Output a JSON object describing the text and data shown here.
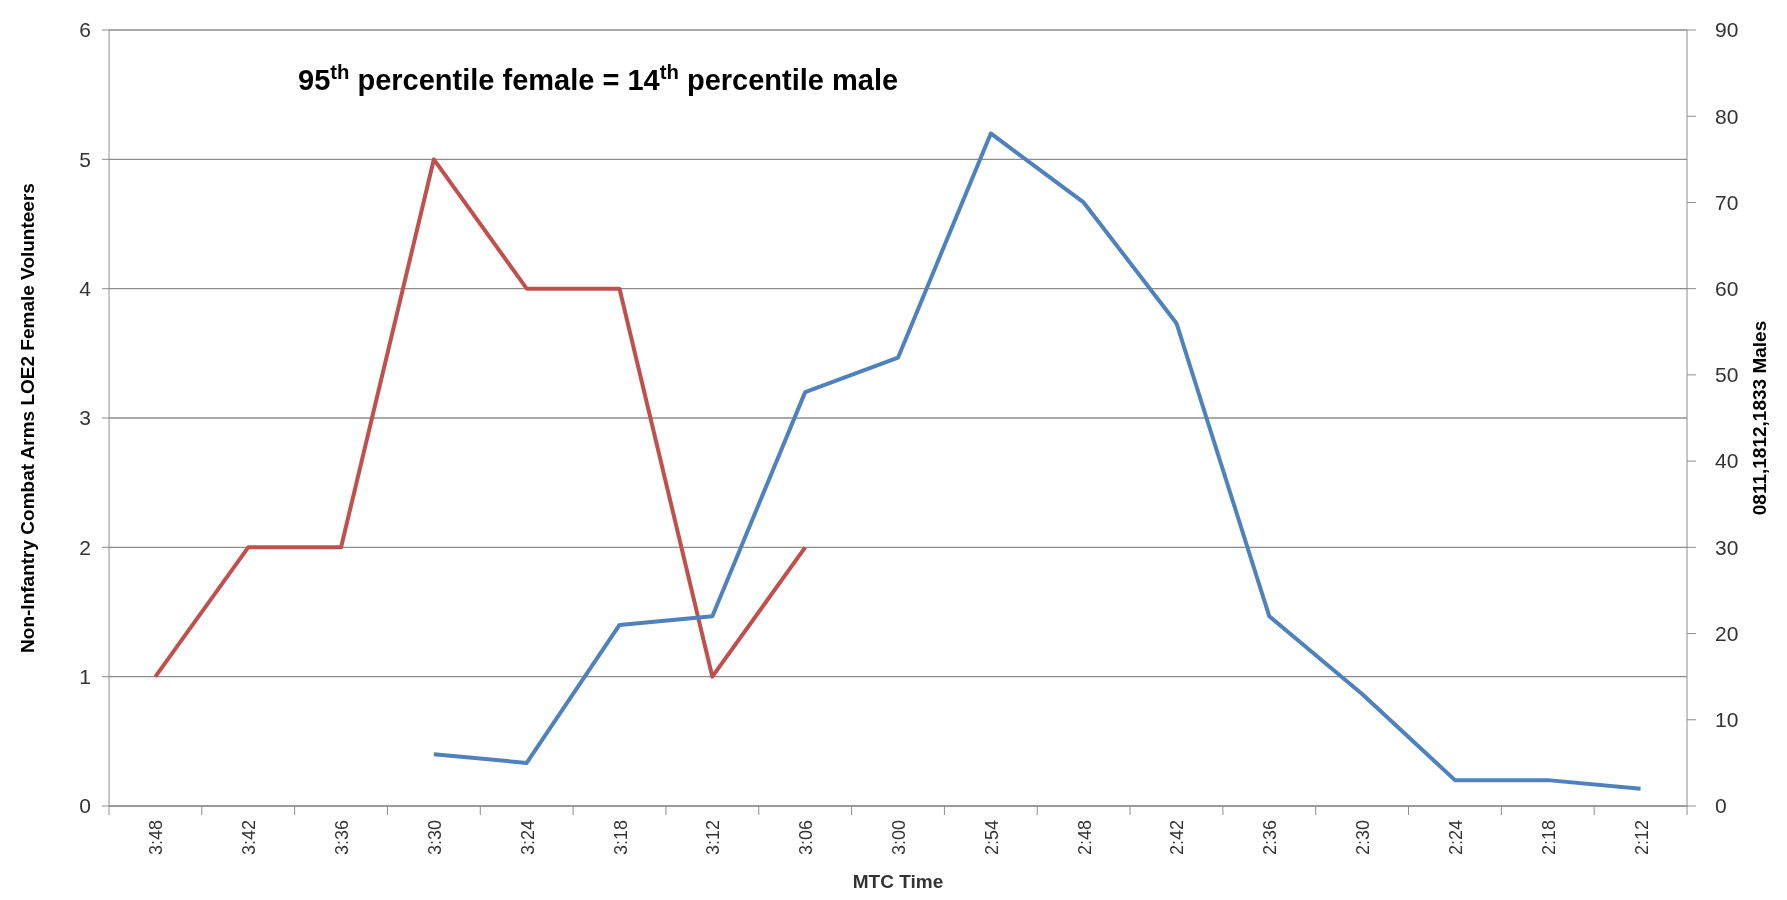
{
  "chart_data": {
    "type": "line",
    "title": "95$^{th}$ percentile female = 14$^{th}$ percentile male",
    "xlabel": "MTC Time",
    "ylabel": "Non-Infantry Combat Arms LOE2 Female Volunteers",
    "y2label": "0811,1812,1833 Males",
    "categories": [
      "3:48",
      "3:42",
      "3:36",
      "3:30",
      "3:24",
      "3:18",
      "3:12",
      "3:06",
      "3:00",
      "2:54",
      "2:48",
      "2:42",
      "2:36",
      "2:30",
      "2:24",
      "2:18",
      "2:12"
    ],
    "series": [
      {
        "color": "#c0504d",
        "values": [
          1,
          2,
          2,
          5,
          4,
          4,
          1,
          2,
          null,
          null,
          null,
          null,
          null,
          null,
          null,
          null,
          null
        ]
      },
      {
        "color": "#4f81bd",
        "axis": "y2",
        "values": [
          null,
          null,
          null,
          6,
          5,
          21,
          22,
          48,
          52,
          78,
          70,
          56,
          22,
          13,
          3,
          3,
          2
        ]
      }
    ],
    "ylim": [
      0,
      6
    ],
    "yticks": [
      0,
      1,
      2,
      3,
      4,
      5,
      6
    ],
    "y2lim": [
      0,
      90
    ],
    "y2ticks": [
      0,
      10,
      20,
      30,
      40,
      50,
      60,
      70,
      80,
      90
    ],
    "grid": "y"
  }
}
